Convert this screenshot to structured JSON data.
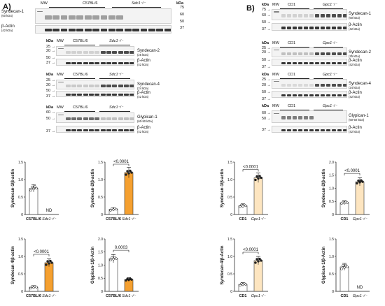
{
  "figure": {
    "panel_a": {
      "label": "A)",
      "blots": [
        {
          "mw": "kDa",
          "header_left": "C57BL/6",
          "header_right": "Sdc1⁻/⁻",
          "header_mw": "MW",
          "target": "Syndecan-1",
          "target_kda": "(60 kDa)",
          "actin": "β-Actin",
          "actin_kda": "(42 kDa)",
          "ticks": [
            "75",
            "60",
            "50",
            "37"
          ],
          "mw_col": "MW"
        },
        {
          "mw": "kDa",
          "header_left": "C57BL/6",
          "header_right": "Sdc1⁻/⁻",
          "header_mw": "MW",
          "target": "Syndecan-2",
          "target_kda": "(25 kDa)",
          "actin": "β-Actin",
          "actin_kda": "(42 kDa)",
          "ticks": [
            "25",
            "20",
            "50",
            "37"
          ]
        },
        {
          "mw": "kDa",
          "header_left": "C57BL/6",
          "header_right": "Sdc1⁻/⁻",
          "header_mw": "MW",
          "target": "Syndecan-4",
          "target_kda": "(24 kDa)",
          "actin": "β-Actin",
          "actin_kda": "(42 kDa)",
          "ticks": [
            "25",
            "20",
            "50",
            "37"
          ]
        },
        {
          "mw": "kDa",
          "header_left": "C57BL/6",
          "header_right": "Sdc1⁻/⁻",
          "header_mw": "MW",
          "target": "Glypican-1",
          "target_kda": "(60-50 kDa)",
          "actin": "β-Actin",
          "actin_kda": "(42 kDa)",
          "ticks": [
            "60",
            "50",
            "37"
          ]
        }
      ]
    },
    "panel_b": {
      "label": "B)",
      "blots": [
        {
          "mw": "kDa",
          "header_left": "CD1",
          "header_right": "Gpc1⁻/⁻",
          "header_mw": "MW",
          "target": "Syndecan-1",
          "target_kda": "(60 kDa)",
          "actin": "β-Actin",
          "actin_kda": "(42 kDa)",
          "ticks": [
            "75",
            "60",
            "50",
            "37"
          ]
        },
        {
          "mw": "kDa",
          "header_left": "CD1",
          "header_right": "Gpc1⁻/⁻",
          "header_mw": "MW",
          "target": "Syndecan-2",
          "target_kda": "(25 kDa)",
          "actin": "β-Actin",
          "actin_kda": "(42 kDa)",
          "ticks": [
            "25",
            "20",
            "50",
            "37"
          ]
        },
        {
          "mw": "kDa",
          "header_left": "CD1",
          "header_right": "Gpc1⁻/⁻",
          "header_mw": "MW",
          "target": "Syndecan-4",
          "target_kda": "(24 kDa)",
          "actin": "β-Actin",
          "actin_kda": "(42 kDa)",
          "ticks": [
            "25",
            "20",
            "50",
            "37"
          ]
        },
        {
          "mw": "kDa",
          "header_left": "CD1",
          "header_right": "Gpc1⁻/⁻",
          "header_mw": "MW",
          "target": "Glypican-1",
          "target_kda": "(60-50 kDa)",
          "actin": "β-Actin",
          "actin_kda": "(42 kDa)",
          "ticks": [
            "60",
            "50",
            "37"
          ]
        }
      ]
    }
  },
  "chart_data": [
    {
      "type": "bar",
      "panel": "A",
      "ylabel": "Syndecan-1/β-actin",
      "categories": [
        "C57BL/6",
        "Sdc1⁻/⁻"
      ],
      "values": [
        0.75,
        null
      ],
      "annotation": "ND",
      "ylim": [
        0,
        1.5
      ],
      "yticks": [
        "0",
        "0.5",
        "1.0",
        "1.5"
      ],
      "colors": [
        "#ffffff",
        "#f5a030"
      ]
    },
    {
      "type": "bar",
      "panel": "A",
      "ylabel": "Syndecan-2/β-actin",
      "categories": [
        "C57BL/6",
        "Sdc1⁻/⁻"
      ],
      "values": [
        0.15,
        1.2
      ],
      "annotation": "<0.0001",
      "ylim": [
        0,
        1.5
      ],
      "yticks": [
        "0",
        "0.5",
        "1.0",
        "1.5"
      ],
      "colors": [
        "#ffffff",
        "#f5a030"
      ]
    },
    {
      "type": "bar",
      "panel": "A",
      "ylabel": "Syndecan 4/β-actin",
      "categories": [
        "C57BL/6",
        "Sdc1⁻/⁻"
      ],
      "values": [
        0.12,
        0.82
      ],
      "annotation": "<0.0001",
      "ylim": [
        0,
        1.5
      ],
      "yticks": [
        "0",
        "0.5",
        "1.0",
        "1.5"
      ],
      "colors": [
        "#ffffff",
        "#f5a030"
      ]
    },
    {
      "type": "bar",
      "panel": "A",
      "ylabel": "Glypican-1/β-Actin",
      "categories": [
        "C57BL/6",
        "Sdc1⁻/⁻"
      ],
      "values": [
        1.25,
        0.45
      ],
      "annotation": "0.0003",
      "ylim": [
        0,
        2.0
      ],
      "yticks": [
        "0",
        "0.5",
        "1.0",
        "1.5",
        "2.0"
      ],
      "colors": [
        "#ffffff",
        "#f5a030"
      ]
    },
    {
      "type": "bar",
      "panel": "B",
      "ylabel": "Syndecan-1/β-actin",
      "categories": [
        "CD1",
        "Gpc1⁻/⁻"
      ],
      "values": [
        0.25,
        1.05
      ],
      "annotation": "<0.0001",
      "ylim": [
        0,
        1.5
      ],
      "yticks": [
        "0",
        "0.5",
        "1.0",
        "1.5"
      ],
      "colors": [
        "#ffffff",
        "#fde5c0"
      ]
    },
    {
      "type": "bar",
      "panel": "B",
      "ylabel": "Syndecan-2/β-actin",
      "categories": [
        "CD1",
        "Gpc1⁻/⁻"
      ],
      "values": [
        0.45,
        1.25
      ],
      "annotation": "<0.0001",
      "ylim": [
        0,
        2.0
      ],
      "yticks": [
        "0",
        "0.5",
        "1.0",
        "1.5",
        "2.0"
      ],
      "colors": [
        "#ffffff",
        "#fde5c0"
      ]
    },
    {
      "type": "bar",
      "panel": "B",
      "ylabel": "Syndecan-4/β-Actin",
      "categories": [
        "CD1",
        "Gpc1⁻/⁻"
      ],
      "values": [
        0.2,
        0.88
      ],
      "annotation": "<0.0001",
      "ylim": [
        0,
        1.5
      ],
      "yticks": [
        "0",
        "0.5",
        "1.0",
        "1.5"
      ],
      "colors": [
        "#ffffff",
        "#fde5c0"
      ]
    },
    {
      "type": "bar",
      "panel": "B",
      "ylabel": "Glypican-1/β-Actin",
      "categories": [
        "CD1",
        "Gpc1⁻/⁻"
      ],
      "values": [
        0.7,
        null
      ],
      "annotation": "ND",
      "ylim": [
        0,
        1.5
      ],
      "yticks": [
        "0",
        "0.5",
        "1.0",
        "1.5"
      ],
      "colors": [
        "#ffffff",
        "#fde5c0"
      ]
    }
  ]
}
